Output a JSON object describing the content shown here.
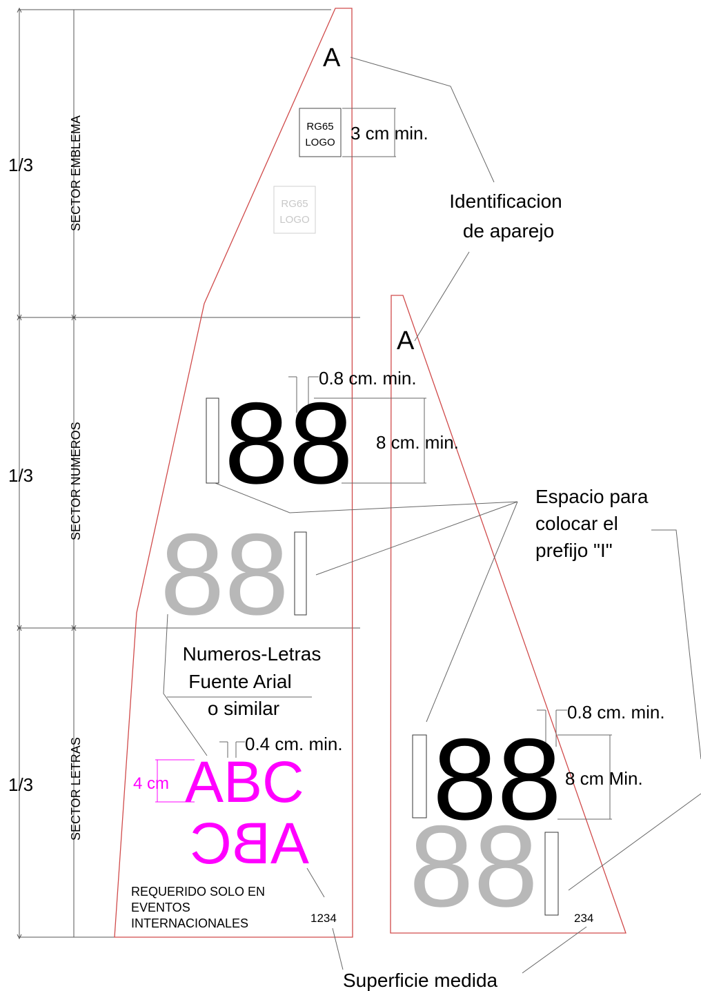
{
  "fractions": {
    "top": "1/3",
    "middle": "1/3",
    "bottom": "1/3"
  },
  "sectors": {
    "emblema": "SECTOR EMBLEMA",
    "numeros": "SECTOR NUMEROS",
    "letras": "SECTOR LETRAS"
  },
  "main_sail": {
    "rig_id": "A",
    "logo_line1": "RG65",
    "logo_line2": "LOGO",
    "logo_dim": "3 cm min.",
    "faded_logo_line1": "RG65",
    "faded_logo_line2": "LOGO",
    "number": "88",
    "number_gap": "0.8 cm. min.",
    "number_height": "8 cm. min.",
    "faded_number": "88",
    "letters": "ABC",
    "letters_mirrored": "ABC",
    "letters_height": "4 cm",
    "letters_gap": "0.4 cm. min.",
    "required_note_1": "REQUERIDO SOLO EN",
    "required_note_2": "EVENTOS",
    "required_note_3": "INTERNACIONALES",
    "measured_area": "1234"
  },
  "jib": {
    "rig_id": "A",
    "number": "88",
    "number_gap": "0.8 cm. min.",
    "number_height": "8 cm Min.",
    "faded_number": "88",
    "measured_area": "234"
  },
  "callouts": {
    "rig_identification_1": "Identificacion",
    "rig_identification_2": "de aparejo",
    "prefix_space_1": "Espacio para",
    "prefix_space_2": "colocar el",
    "prefix_space_3": "prefijo  \"I\"",
    "font_note_1": "Numeros-Letras",
    "font_note_2": "Fuente Arial",
    "font_note_3": "o similar",
    "measured_surface": "Superficie medida"
  },
  "colors": {
    "outline": "#d04a4a",
    "letters": "#ff00ff",
    "faded": "#b8b8b8",
    "faded_logo": "#c8c8c8",
    "ink": "#000000"
  }
}
